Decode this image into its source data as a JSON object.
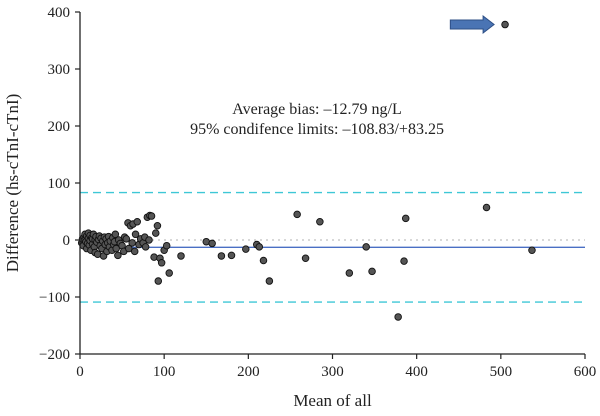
{
  "chart_data": {
    "type": "scatter",
    "title": "",
    "xlabel": "Mean of all",
    "ylabel": "Difference (hs-cTnI-cTnI)",
    "xlim": [
      0,
      600
    ],
    "ylim": [
      -200,
      400
    ],
    "xticks": [
      0,
      100,
      200,
      300,
      400,
      500,
      600
    ],
    "yticks": [
      -200,
      -100,
      0,
      100,
      200,
      300,
      400
    ],
    "grid": false,
    "annotations": [
      "Average bias: –12.79 ng/L",
      "95% condifence limits: –108.83/+83.25"
    ],
    "reference_lines": [
      {
        "y": -12.79,
        "style": "solid",
        "color": "#4a6fc4"
      },
      {
        "y": 83.25,
        "style": "dashed",
        "color": "#3ec7d6"
      },
      {
        "y": -108.83,
        "style": "dashed",
        "color": "#3ec7d6"
      },
      {
        "y": 0,
        "style": "dotted",
        "color": "#b0b0b0"
      }
    ],
    "arrow": {
      "x_from": 440,
      "x_to": 492,
      "y": 378,
      "color": "#4a74b4"
    },
    "points": [
      [
        505,
        378
      ],
      [
        2,
        -5
      ],
      [
        3,
        2
      ],
      [
        4,
        -10
      ],
      [
        5,
        5
      ],
      [
        6,
        0
      ],
      [
        6,
        10
      ],
      [
        7,
        -3
      ],
      [
        8,
        -15
      ],
      [
        8,
        7
      ],
      [
        9,
        -6
      ],
      [
        10,
        3
      ],
      [
        10,
        12
      ],
      [
        11,
        -9
      ],
      [
        12,
        -1
      ],
      [
        12,
        8
      ],
      [
        13,
        -18
      ],
      [
        14,
        4
      ],
      [
        15,
        -7
      ],
      [
        15,
        2
      ],
      [
        16,
        10
      ],
      [
        17,
        -12
      ],
      [
        18,
        0
      ],
      [
        18,
        -22
      ],
      [
        19,
        6
      ],
      [
        20,
        -4
      ],
      [
        21,
        -25
      ],
      [
        22,
        1
      ],
      [
        23,
        7
      ],
      [
        24,
        -10
      ],
      [
        25,
        3
      ],
      [
        26,
        -15
      ],
      [
        27,
        -2
      ],
      [
        28,
        -28
      ],
      [
        29,
        5
      ],
      [
        30,
        -8
      ],
      [
        31,
        2
      ],
      [
        32,
        -20
      ],
      [
        33,
        -5
      ],
      [
        34,
        6
      ],
      [
        35,
        -12
      ],
      [
        36,
        -2
      ],
      [
        38,
        -18
      ],
      [
        39,
        4
      ],
      [
        40,
        -8
      ],
      [
        41,
        -3
      ],
      [
        42,
        10
      ],
      [
        43,
        -15
      ],
      [
        45,
        -27
      ],
      [
        46,
        0
      ],
      [
        48,
        -6
      ],
      [
        50,
        -10
      ],
      [
        52,
        -20
      ],
      [
        53,
        5
      ],
      [
        55,
        2
      ],
      [
        57,
        30
      ],
      [
        58,
        -15
      ],
      [
        60,
        25
      ],
      [
        62,
        -5
      ],
      [
        63,
        28
      ],
      [
        65,
        -20
      ],
      [
        66,
        10
      ],
      [
        68,
        32
      ],
      [
        70,
        -8
      ],
      [
        72,
        2
      ],
      [
        75,
        -5
      ],
      [
        77,
        5
      ],
      [
        78,
        -12
      ],
      [
        80,
        40
      ],
      [
        82,
        0
      ],
      [
        83,
        43
      ],
      [
        85,
        42
      ],
      [
        88,
        -30
      ],
      [
        90,
        12
      ],
      [
        92,
        25
      ],
      [
        93,
        -72
      ],
      [
        95,
        -32
      ],
      [
        97,
        -40
      ],
      [
        100,
        -18
      ],
      [
        103,
        -10
      ],
      [
        106,
        -58
      ],
      [
        120,
        -28
      ],
      [
        150,
        -3
      ],
      [
        157,
        -6
      ],
      [
        168,
        -28
      ],
      [
        180,
        -27
      ],
      [
        197,
        -16
      ],
      [
        210,
        -8
      ],
      [
        213,
        -12
      ],
      [
        218,
        -36
      ],
      [
        225,
        -72
      ],
      [
        258,
        45
      ],
      [
        268,
        -32
      ],
      [
        285,
        32
      ],
      [
        320,
        -58
      ],
      [
        340,
        -12
      ],
      [
        347,
        -55
      ],
      [
        378,
        -135
      ],
      [
        385,
        -37
      ],
      [
        387,
        38
      ],
      [
        483,
        57
      ],
      [
        537,
        -18
      ]
    ]
  }
}
